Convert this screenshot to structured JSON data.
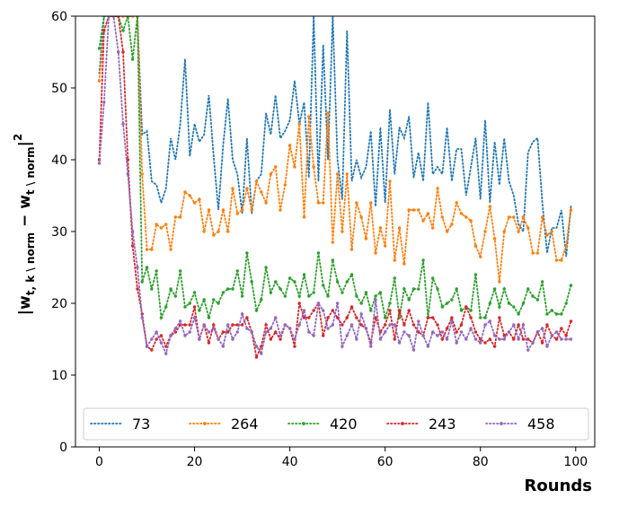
{
  "chart_data": {
    "type": "line",
    "title": "",
    "xlabel": "Rounds",
    "ylabel_main": "|w",
    "ylabel_sub": "t, k \\ norm",
    "ylabel_mid": " − w",
    "ylabel_sub2": "t \\ norm",
    "ylabel_end": "|",
    "ylabel_sup": "2",
    "xlim": [
      -5,
      104
    ],
    "ylim": [
      0,
      60
    ],
    "xticks": [
      0,
      20,
      40,
      60,
      80,
      100
    ],
    "yticks": [
      0,
      10,
      20,
      30,
      40,
      50,
      60
    ],
    "grid": false,
    "legend_position": "bottom",
    "x": [
      0,
      1,
      2,
      3,
      4,
      5,
      6,
      7,
      8,
      9,
      10,
      11,
      12,
      13,
      14,
      15,
      16,
      17,
      18,
      19,
      20,
      21,
      22,
      23,
      24,
      25,
      26,
      27,
      28,
      29,
      30,
      31,
      32,
      33,
      34,
      35,
      36,
      37,
      38,
      39,
      40,
      41,
      42,
      43,
      44,
      45,
      46,
      47,
      48,
      49,
      50,
      51,
      52,
      53,
      54,
      55,
      56,
      57,
      58,
      59,
      60,
      61,
      62,
      63,
      64,
      65,
      66,
      67,
      68,
      69,
      70,
      71,
      72,
      73,
      74,
      75,
      76,
      77,
      78,
      79,
      80,
      81,
      82,
      83,
      84,
      85,
      86,
      87,
      88,
      89,
      90,
      91,
      92,
      93,
      94,
      95,
      96,
      97,
      98,
      99
    ],
    "series": [
      {
        "name": "73",
        "color": "#1f77b4",
        "marker": "none",
        "values": [
          52,
          60,
          60,
          60,
          60,
          60,
          60,
          60,
          60,
          43.5,
          44,
          37,
          36.5,
          34,
          36,
          43,
          40,
          45,
          54,
          40.5,
          45,
          42.5,
          43.5,
          49,
          40.5,
          33,
          42,
          48.5,
          40,
          38,
          32.5,
          43,
          32.5,
          37,
          38,
          46.5,
          43.5,
          49,
          43,
          44,
          45.5,
          51,
          45,
          48,
          37.5,
          60,
          37,
          56,
          40,
          60,
          40,
          34.5,
          58,
          37,
          40,
          37.5,
          39,
          44,
          33.5,
          44.5,
          34,
          47,
          38,
          44.5,
          43,
          46,
          37.5,
          41,
          37,
          48,
          38,
          39,
          38,
          44.5,
          37,
          41.5,
          41.5,
          35,
          39,
          43,
          34.5,
          45.5,
          34,
          42.5,
          36.5,
          43,
          37,
          35,
          31,
          30,
          41,
          42.5,
          43,
          34,
          27,
          30.5,
          30.5,
          33,
          26.5,
          33.5
        ]
      },
      {
        "name": "264",
        "color": "#ff7f0e",
        "marker": "circle",
        "values": [
          51,
          58,
          60,
          60,
          60,
          60,
          60,
          60,
          60,
          38,
          27.5,
          27.5,
          31,
          30.5,
          31,
          27.5,
          32,
          32,
          35.5,
          35,
          34,
          34.5,
          30,
          33,
          29.5,
          30,
          33,
          30,
          36,
          32.5,
          33,
          36,
          33,
          37,
          35.5,
          34,
          38,
          39,
          33,
          36.5,
          42,
          39,
          45,
          32,
          46,
          39,
          34,
          34,
          46.5,
          28.5,
          38,
          30,
          38,
          27.5,
          34,
          32,
          29,
          34,
          27,
          30.5,
          28,
          37,
          26,
          30.5,
          25.5,
          33,
          33,
          33,
          31.5,
          32.5,
          30.5,
          36,
          32,
          30,
          31,
          34,
          32.5,
          32,
          31.5,
          28,
          26.5,
          30,
          33.5,
          29,
          23,
          30,
          32,
          32,
          30,
          32,
          30.5,
          27,
          27,
          32,
          29.5,
          30,
          26,
          26,
          28,
          33
        ]
      },
      {
        "name": "420",
        "color": "#2ca02c",
        "marker": "circle",
        "values": [
          55.5,
          60,
          60,
          60,
          60,
          58,
          60,
          54,
          60,
          23,
          25,
          22,
          24.5,
          18,
          19.5,
          22,
          21,
          24.5,
          19.5,
          20,
          21.5,
          19,
          20.5,
          18,
          20.5,
          20,
          21.5,
          22,
          22,
          24.5,
          21,
          27,
          23,
          19,
          20.5,
          25,
          21.5,
          23,
          22,
          21,
          23.5,
          23,
          21,
          24,
          21,
          21.5,
          27,
          22.5,
          21,
          26,
          23,
          21.5,
          23,
          24,
          21,
          20,
          21.5,
          19,
          21,
          21.5,
          18,
          20,
          23.5,
          18,
          22,
          20.5,
          22,
          22,
          26,
          18,
          23.5,
          22,
          19.5,
          20,
          20.5,
          22,
          19,
          19.5,
          19,
          24,
          18,
          18,
          20,
          22,
          19.5,
          22,
          20,
          19.5,
          18.5,
          20,
          22,
          21,
          20.5,
          23,
          18.5,
          19,
          18.5,
          18.5,
          20,
          22.5
        ]
      },
      {
        "name": "243",
        "color": "#d62728",
        "marker": "circle",
        "values": [
          40,
          58,
          60,
          60,
          60,
          55,
          40,
          28,
          22,
          18.5,
          14,
          13.5,
          15,
          15.5,
          14,
          15.5,
          16,
          17,
          17,
          17,
          19.5,
          15,
          17,
          14.5,
          17,
          15,
          16,
          16,
          17,
          17,
          17,
          18,
          16,
          12.5,
          14,
          17,
          15,
          16,
          15,
          17,
          16.5,
          14,
          20,
          18,
          18,
          19,
          20,
          15.5,
          18,
          19,
          18,
          17,
          18,
          19.5,
          18,
          17,
          16.5,
          14.5,
          18,
          16,
          17,
          19,
          15,
          19,
          17,
          19,
          17,
          16,
          15.5,
          18,
          18,
          17,
          15,
          16.5,
          18,
          16,
          17,
          19.5,
          18,
          16,
          15,
          14.5,
          15,
          14,
          18,
          15.5,
          16,
          15,
          17,
          15,
          15,
          14.5,
          16,
          14.5,
          17,
          15.5,
          15,
          16.5,
          15.5,
          17.5
        ]
      },
      {
        "name": "458",
        "color": "#9467bd",
        "marker": "circle",
        "values": [
          39.5,
          48,
          60,
          60,
          55,
          45,
          38,
          30,
          25,
          18,
          14,
          15,
          16,
          14.5,
          13,
          15.5,
          16.5,
          17.5,
          15.5,
          16,
          18,
          15,
          17,
          16,
          16.5,
          15,
          14,
          17,
          15,
          16,
          18.5,
          16.5,
          16,
          14,
          13,
          16,
          16.5,
          18,
          15.5,
          17,
          16.5,
          15,
          17,
          19,
          16,
          15.5,
          20,
          19,
          16.5,
          17,
          20,
          14,
          15.5,
          17,
          15,
          18.5,
          16.5,
          14,
          20.5,
          15,
          16,
          17,
          17,
          14.5,
          16,
          15.5,
          13.5,
          17.5,
          15.5,
          14,
          16,
          15.5,
          16,
          15,
          17.5,
          14.5,
          16,
          15,
          16.5,
          15,
          14.5,
          17,
          17.5,
          15.5,
          15,
          15,
          16,
          17,
          15,
          17,
          13.5,
          14.5,
          16,
          16.5,
          14,
          15.5,
          16,
          15,
          15,
          15
        ]
      }
    ]
  }
}
